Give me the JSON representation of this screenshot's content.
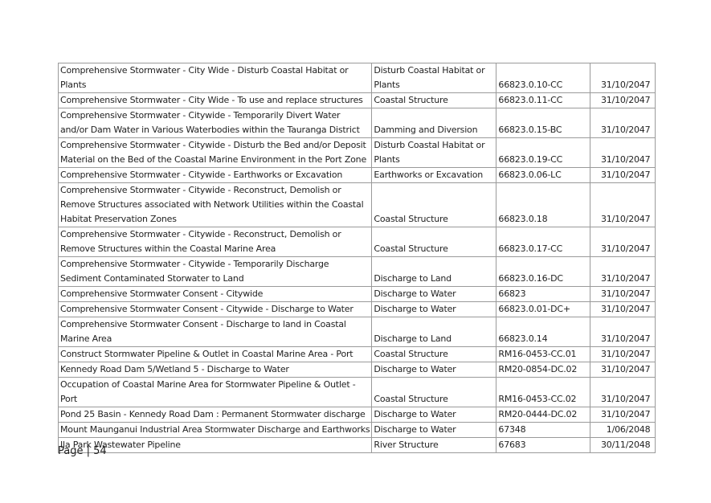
{
  "table": {
    "rows": [
      {
        "activity": [
          "Comprehensive Stormwater - City Wide - Disturb Coastal Habitat or",
          "Plants"
        ],
        "type": [
          "Disturb Coastal Habitat or",
          "Plants"
        ],
        "consent": "66823.0.10-CC",
        "expiry": "31/10/2047"
      },
      {
        "activity": [
          "Comprehensive Stormwater - City Wide - To use and replace structures"
        ],
        "type": [
          "Coastal Structure"
        ],
        "consent": "66823.0.11-CC",
        "expiry": "31/10/2047"
      },
      {
        "activity": [
          "Comprehensive Stormwater - Citywide -  Temporarily Divert Water",
          "and/or Dam Water in Various Waterbodies within the Tauranga District"
        ],
        "type": [
          "Damming and Diversion"
        ],
        "consent": "66823.0.15-BC",
        "expiry": "31/10/2047"
      },
      {
        "activity": [
          "Comprehensive Stormwater - Citywide - Disturb the Bed and/or Deposit",
          "Material on the Bed of the Coastal Marine Environment in the Port Zone"
        ],
        "type": [
          "Disturb Coastal Habitat or",
          "Plants"
        ],
        "consent": "66823.0.19-CC",
        "expiry": "31/10/2047"
      },
      {
        "activity": [
          "Comprehensive Stormwater - Citywide - Earthworks or Excavation"
        ],
        "type": [
          "Earthworks or Excavation"
        ],
        "consent": "66823.0.06-LC",
        "expiry": "31/10/2047"
      },
      {
        "activity": [
          "Comprehensive Stormwater - Citywide - Reconstruct,  Demolish or",
          "Remove Structures associated with Network Utilities within the Coastal",
          "Habitat Preservation  Zones"
        ],
        "type": [
          "Coastal Structure"
        ],
        "consent": "66823.0.18",
        "expiry": "31/10/2047"
      },
      {
        "activity": [
          "Comprehensive Stormwater - Citywide - Reconstruct, Demolish or",
          "Remove Structures within the Coastal Marine Area"
        ],
        "type": [
          "Coastal Structure"
        ],
        "consent": "66823.0.17-CC",
        "expiry": "31/10/2047"
      },
      {
        "activity": [
          "Comprehensive Stormwater - Citywide - Temporarily Discharge",
          "Sediment Contaminated Storwater to Land"
        ],
        "type": [
          "Discharge to Land"
        ],
        "consent": "66823.0.16-DC",
        "expiry": "31/10/2047"
      },
      {
        "activity": [
          "Comprehensive Stormwater Consent - Citywide"
        ],
        "type": [
          "Discharge to Water"
        ],
        "consent": "66823",
        "expiry": "31/10/2047"
      },
      {
        "activity": [
          "Comprehensive Stormwater Consent - Citywide - Discharge to Water"
        ],
        "type": [
          "Discharge to Water"
        ],
        "consent": "66823.0.01-DC+",
        "expiry": "31/10/2047"
      },
      {
        "activity": [
          "Comprehensive Stormwater Consent - Discharge to land in Coastal",
          "Marine Area"
        ],
        "type": [
          "Discharge to Land"
        ],
        "consent": "66823.0.14",
        "expiry": "31/10/2047"
      },
      {
        "activity": [
          "Construct Stormwater Pipeline & Outlet in Coastal Marine Area - Port"
        ],
        "type": [
          "Coastal Structure"
        ],
        "consent": "RM16-0453-CC.01",
        "expiry": "31/10/2047"
      },
      {
        "activity": [
          "Kennedy Road Dam 5/Wetland 5 - Discharge to Water"
        ],
        "type": [
          "Discharge to Water"
        ],
        "consent": "RM20-0854-DC.02",
        "expiry": "31/10/2047"
      },
      {
        "activity": [
          "Occupation of Coastal Marine Area for Stormwater Pipeline & Outlet -",
          "Port"
        ],
        "type": [
          "Coastal Structure"
        ],
        "consent": "RM16-0453-CC.02",
        "expiry": "31/10/2047"
      },
      {
        "activity": [
          "Pond 25 Basin - Kennedy Road Dam : Permanent Stormwater discharge"
        ],
        "type": [
          "Discharge to Water"
        ],
        "consent": "RM20-0444-DC.02",
        "expiry": "31/10/2047"
      },
      {
        "activity": [
          "Mount Maunganui Industrial Area Stormwater Discharge and Earthworks"
        ],
        "type": [
          "Discharge to Water"
        ],
        "consent": "67348",
        "expiry": "1/06/2048"
      },
      {
        "activity": [
          "Ila Park Wastewater Pipeline"
        ],
        "type": [
          "River Structure"
        ],
        "consent": "67683",
        "expiry": "30/11/2048"
      }
    ]
  },
  "footer": {
    "page_label": "Page | 54"
  }
}
